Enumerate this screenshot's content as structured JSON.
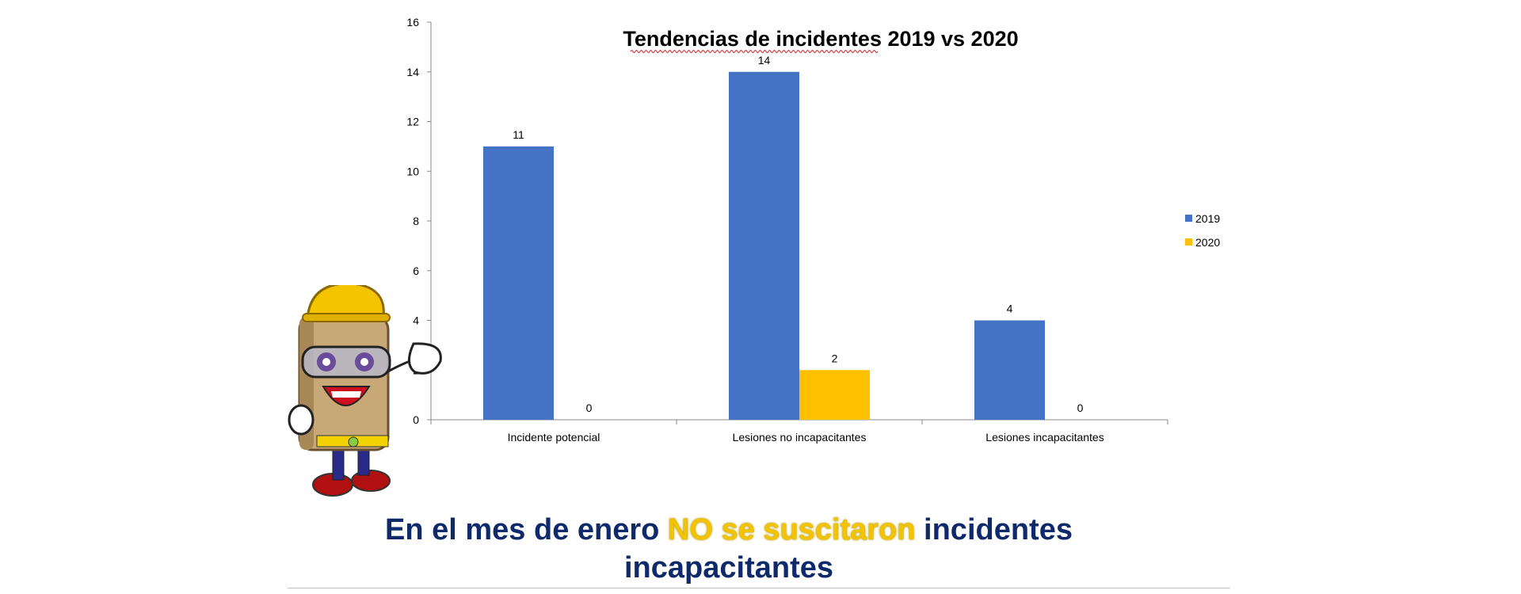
{
  "chart_data": {
    "type": "bar",
    "title": "Tendencias de incidentes 2019 vs 2020",
    "categories": [
      "Incidente potencial",
      "Lesiones no incapacitantes",
      "Lesiones incapacitantes"
    ],
    "series": [
      {
        "name": "2019",
        "values": [
          11,
          14,
          4
        ],
        "color": "#4472c4"
      },
      {
        "name": "2020",
        "values": [
          0,
          2,
          0
        ],
        "color": "#ffc000"
      }
    ],
    "ylim": [
      0,
      16
    ],
    "yticks": [
      0,
      2,
      4,
      6,
      8,
      10,
      12,
      14,
      16
    ],
    "legend": "right",
    "grid": false
  },
  "message": {
    "part1": "En el mes de enero ",
    "highlight": "NO se suscitaron",
    "part2": " incidentes incapacitantes",
    "highlight_color": "#f5c200",
    "text_color": "#0f2a6b"
  },
  "mascot": {
    "icon": "hard-hat-mascot-icon"
  }
}
